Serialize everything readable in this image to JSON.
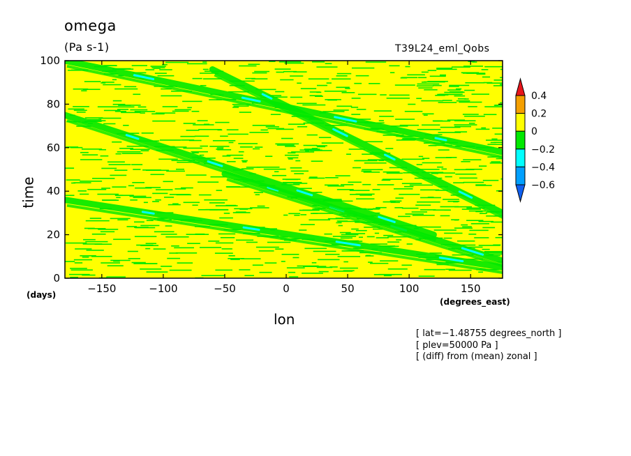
{
  "chart_data": {
    "type": "heatmap",
    "title": "omega",
    "units": "(Pa s-1)",
    "experiment": "T39L24_eml_Qobs",
    "xlabel": "lon",
    "xunits": "(degrees_east)",
    "ylabel": "time",
    "yunits": "(days)",
    "xlim": [
      -180,
      176
    ],
    "ylim": [
      0,
      100
    ],
    "xticks": [
      -150,
      -100,
      -50,
      0,
      50,
      100,
      150
    ],
    "xtick_labels": [
      "−150",
      "−100",
      "−50",
      "0",
      "50",
      "100",
      "150"
    ],
    "yticks": [
      0,
      20,
      40,
      60,
      80,
      100
    ],
    "ytick_labels": [
      "0",
      "20",
      "40",
      "60",
      "80",
      "100"
    ],
    "colorbar": {
      "levels": [
        -0.6,
        -0.4,
        -0.2,
        0,
        0.2,
        0.4
      ],
      "labels": [
        "0.4",
        "0.2",
        "0",
        "−0.2",
        "−0.4",
        "−0.6"
      ],
      "colors": {
        "above_0.4": "#e8151b",
        "0.2_to_0.4": "#f5a000",
        "0_to_0.2": "#ffff00",
        "-0.2_to_0": "#00e900",
        "-0.4_to_-0.2": "#00ffff",
        "-0.6_to_-0.4": "#00a0ff",
        "below_-0.6": "#1060f0"
      }
    },
    "features": [
      {
        "description": "eastward-propagating negative omega bands",
        "start": [
          -180,
          36
        ],
        "end": [
          176,
          5
        ]
      },
      {
        "description": "eastward-propagating negative omega bands",
        "start": [
          -60,
          96
        ],
        "end": [
          176,
          30
        ]
      },
      {
        "description": "eastward-propagating negative omega bands",
        "start": [
          -180,
          100
        ],
        "end": [
          176,
          58
        ]
      },
      {
        "description": "eastward-propagating negative omega bands",
        "start": [
          -50,
          48
        ],
        "end": [
          176,
          8
        ]
      },
      {
        "description": "eastward-propagating negative omega bands",
        "start": [
          -180,
          75
        ],
        "end": [
          120,
          20
        ]
      }
    ]
  },
  "annotations": {
    "lat": "[ lat=−1.48755 degrees_north ]",
    "plev": "[ plev=50000 Pa ]",
    "diff": "[ (diff) from (mean) zonal ]"
  }
}
